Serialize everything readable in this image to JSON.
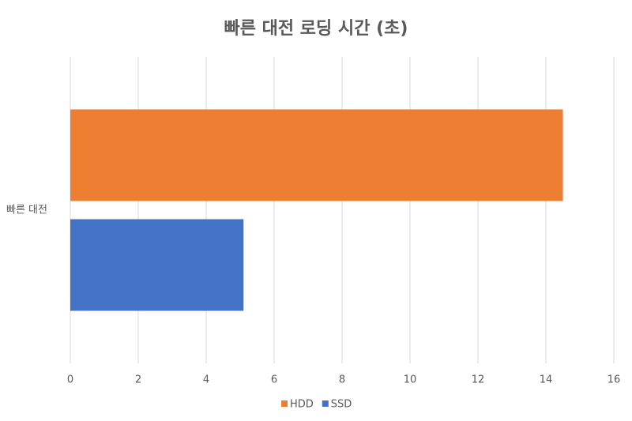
{
  "chart_data": {
    "type": "hbar",
    "title": "빠른 대전 로딩 시간 (초)",
    "categories": [
      "빠른 대전"
    ],
    "series": [
      {
        "name": "HDD",
        "color": "#ed7d31",
        "values": [
          14.5
        ]
      },
      {
        "name": "SSD",
        "color": "#4472c4",
        "values": [
          5.1
        ]
      }
    ],
    "xlim": [
      0,
      16
    ],
    "xticks": [
      0,
      2,
      4,
      6,
      8,
      10,
      12,
      14,
      16
    ],
    "grid": true,
    "legend": "bottom"
  }
}
